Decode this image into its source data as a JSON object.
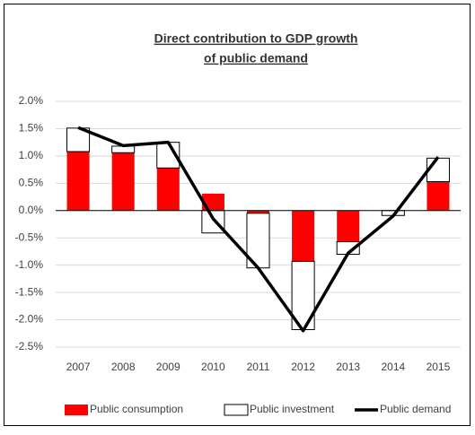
{
  "chart_data": {
    "type": "bar",
    "title": [
      "Direct contribution to GDP growth",
      "of public demand"
    ],
    "categories": [
      "2007",
      "2008",
      "2009",
      "2010",
      "2011",
      "2012",
      "2013",
      "2014",
      "2015"
    ],
    "series": [
      {
        "name": "Public consumption",
        "color": "#ff0000",
        "values": [
          1.08,
          1.06,
          0.78,
          0.31,
          -0.05,
          -0.93,
          -0.57,
          0,
          0.53
        ]
      },
      {
        "name": "Public investment",
        "color": "#ffffff",
        "values": [
          0.43,
          0.12,
          0.47,
          -0.41,
          -1.0,
          -1.25,
          -0.23,
          -0.09,
          0.43
        ]
      },
      {
        "name": "Public demand",
        "type": "line",
        "color": "#000000",
        "values": [
          1.52,
          1.19,
          1.25,
          -0.15,
          -1.05,
          -2.2,
          -0.78,
          -0.1,
          0.98
        ]
      }
    ],
    "ylim": [
      -2.5,
      2.0
    ],
    "yticks": [
      {
        "value": -2.5,
        "label": "-2.5%"
      },
      {
        "value": -2.0,
        "label": "-2.0%"
      },
      {
        "value": -1.5,
        "label": "-1.5%"
      },
      {
        "value": -1.0,
        "label": "-1.0%"
      },
      {
        "value": -0.5,
        "label": "-0.5%"
      },
      {
        "value": 0,
        "label": "0.0%"
      },
      {
        "value": 0.5,
        "label": "0.5%"
      },
      {
        "value": 1.0,
        "label": "1.0%"
      },
      {
        "value": 1.5,
        "label": "1.5%"
      },
      {
        "value": 2.0,
        "label": "2.0%"
      }
    ],
    "grid": true,
    "legend": "bottom"
  }
}
